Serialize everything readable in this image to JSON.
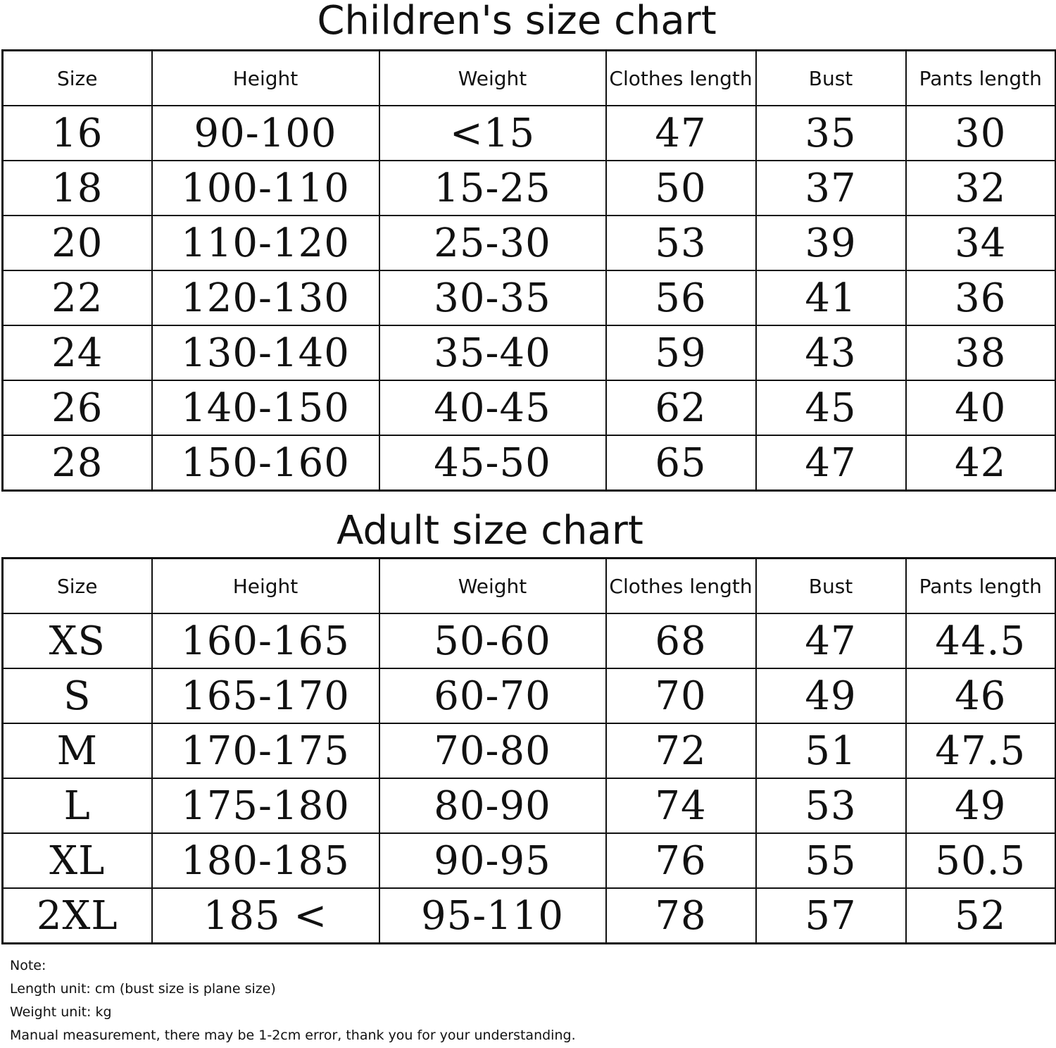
{
  "children": {
    "title": "Children's size chart",
    "headers": [
      "Size",
      "Height",
      "Weight",
      "Clothes length",
      "Bust",
      "Pants length"
    ],
    "rows": [
      [
        "16",
        "90-100",
        "<15",
        "47",
        "35",
        "30"
      ],
      [
        "18",
        "100-110",
        "15-25",
        "50",
        "37",
        "32"
      ],
      [
        "20",
        "110-120",
        "25-30",
        "53",
        "39",
        "34"
      ],
      [
        "22",
        "120-130",
        "30-35",
        "56",
        "41",
        "36"
      ],
      [
        "24",
        "130-140",
        "35-40",
        "59",
        "43",
        "38"
      ],
      [
        "26",
        "140-150",
        "40-45",
        "62",
        "45",
        "40"
      ],
      [
        "28",
        "150-160",
        "45-50",
        "65",
        "47",
        "42"
      ]
    ]
  },
  "adult": {
    "title": "Adult size chart",
    "headers": [
      "Size",
      "Height",
      "Weight",
      "Clothes length",
      "Bust",
      "Pants length"
    ],
    "rows": [
      [
        "XS",
        "160-165",
        "50-60",
        "68",
        "47",
        "44.5"
      ],
      [
        "S",
        "165-170",
        "60-70",
        "70",
        "49",
        "46"
      ],
      [
        "M",
        "170-175",
        "70-80",
        "72",
        "51",
        "47.5"
      ],
      [
        "L",
        "175-180",
        "80-90",
        "74",
        "53",
        "49"
      ],
      [
        "XL",
        "180-185",
        "90-95",
        "76",
        "55",
        "50.5"
      ],
      [
        "2XL",
        "185 <",
        "95-110",
        "78",
        "57",
        "52"
      ]
    ]
  },
  "notes": [
    "Note:",
    "Length unit: cm (bust size is plane size)",
    "Weight unit: kg",
    "Manual measurement, there may be 1-2cm error, thank you for your understanding."
  ]
}
